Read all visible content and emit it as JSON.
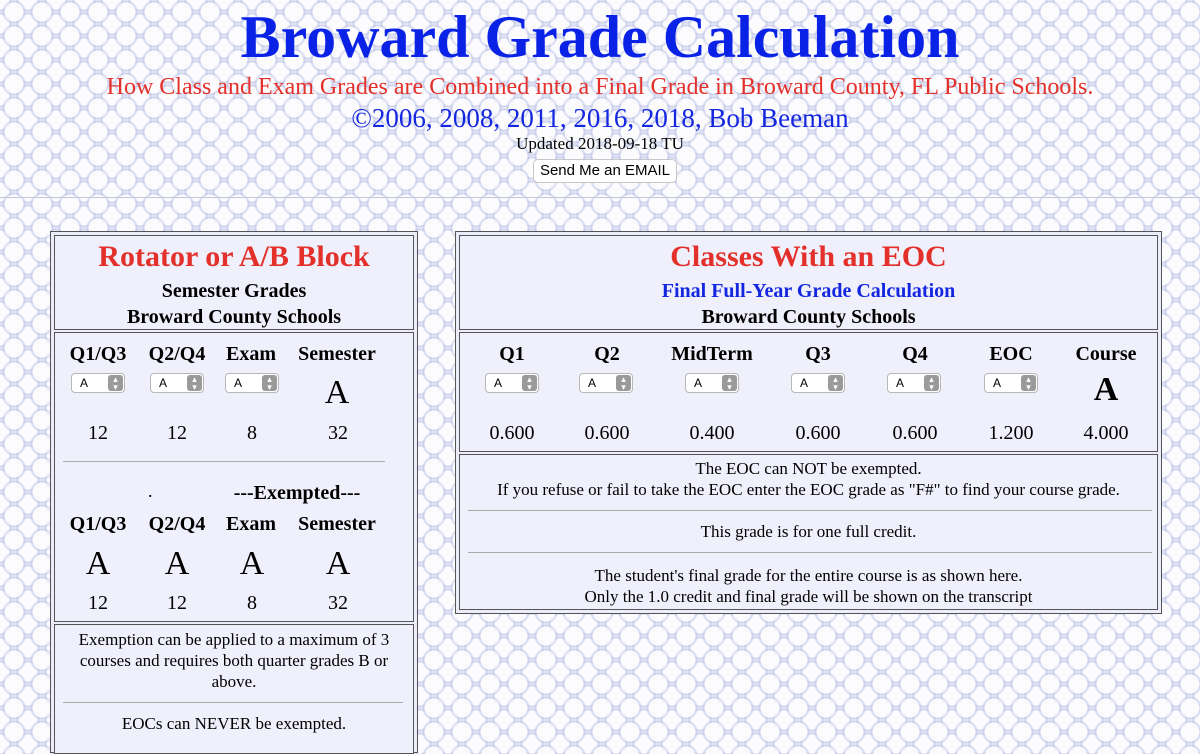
{
  "header": {
    "title": "Broward Grade Calculation",
    "subtitle": "How Class and Exam Grades are Combined into a Final Grade in Broward County, FL Public Schools.",
    "copyright": "©2006, 2008, 2011, 2016, 2018, Bob Beeman",
    "updated": "Updated 2018-09-18 TU",
    "email_button": "Send Me an EMAIL"
  },
  "left_panel": {
    "title": "Rotator or A/B Block",
    "line1": "Semester Grades",
    "line2": "Broward County Schools",
    "columns": [
      "Q1/Q3",
      "Q2/Q4",
      "Exam",
      "Semester"
    ],
    "selects": [
      "A",
      "A",
      "A"
    ],
    "result_grade": "A",
    "points": [
      "12",
      "12",
      "8",
      "32"
    ],
    "dot": ".",
    "exempted_label": "---Exempted---",
    "exempt_columns": [
      "Q1/Q3",
      "Q2/Q4",
      "Exam",
      "Semester"
    ],
    "exempt_grades": [
      "A",
      "A",
      "A",
      "A"
    ],
    "exempt_points": [
      "12",
      "12",
      "8",
      "32"
    ],
    "note_exemption": "Exemption can be applied to a maximum of 3 courses and requires both quarter grades B or above.",
    "note_eoc": "EOCs can NEVER be exempted."
  },
  "right_panel": {
    "title": "Classes With an EOC",
    "subtitle": "Final Full-Year Grade Calculation",
    "line2": "Broward County Schools",
    "columns": [
      "Q1",
      "Q2",
      "MidTerm",
      "Q3",
      "Q4",
      "EOC",
      "Course"
    ],
    "selects": [
      "A",
      "A",
      "A",
      "A",
      "A",
      "A"
    ],
    "result_grade": "A",
    "points": [
      "0.600",
      "0.600",
      "0.400",
      "0.600",
      "0.600",
      "1.200",
      "4.000"
    ],
    "note1_line1": "The EOC can NOT be exempted.",
    "note1_line2": "If you refuse or fail to take the EOC enter the EOC grade as \"F#\" to find your course grade.",
    "note2": "This grade is for one full credit.",
    "note3_line1": "The student's final grade for the entire course is as shown here.",
    "note3_line2": "Only the 1.0 credit and final grade will be shown on the transcript"
  },
  "colors": {
    "title_blue": "#0a22e6",
    "accent_red": "#e3302a",
    "copyright_blue": "#1326e0",
    "background": "#eceef8"
  }
}
